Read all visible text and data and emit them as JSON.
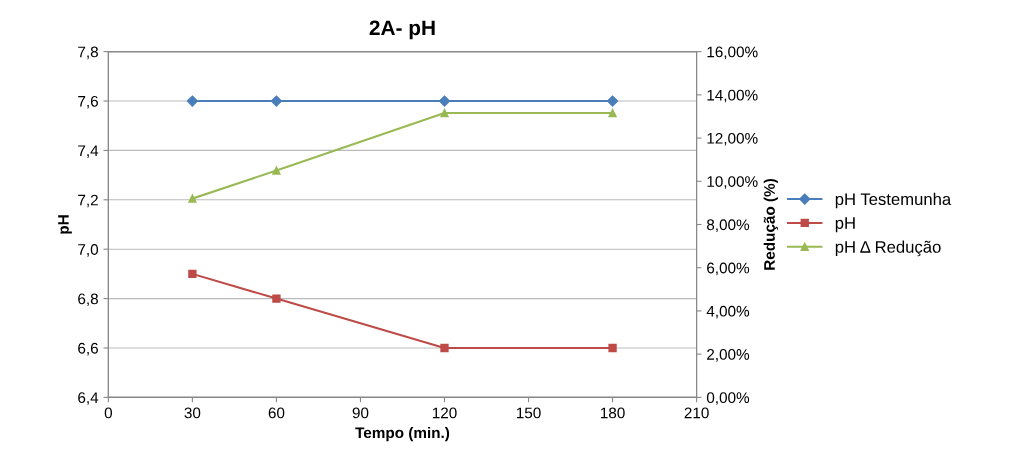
{
  "chart_data": {
    "type": "line",
    "title": "2A- pH",
    "xlabel": "Tempo (min.)",
    "ylabel": "pH",
    "y2label": "Redução (%)",
    "x": [
      30,
      60,
      120,
      180
    ],
    "series": [
      {
        "name": "pH Testemunha",
        "color": "#4a7ebb",
        "values": [
          7.6,
          7.6,
          7.6,
          7.6
        ],
        "marker": "diamond"
      },
      {
        "name": "pH",
        "color": "#be4b48",
        "values": [
          6.9,
          6.8,
          6.6,
          6.6
        ],
        "marker": "square"
      },
      {
        "name": "pH Δ Redução",
        "color": "#98b954",
        "values": [
          9.2,
          10.5,
          13.16,
          13.16
        ],
        "marker": "triangle",
        "axis": "y2"
      }
    ],
    "xlim": [
      0,
      210
    ],
    "xticks": [
      0,
      30,
      60,
      90,
      120,
      150,
      180,
      210
    ],
    "ylim": [
      6.4,
      7.8
    ],
    "yticks": [
      {
        "value": 6.4,
        "label": "6,4"
      },
      {
        "value": 6.6,
        "label": "6,6"
      },
      {
        "value": 6.8,
        "label": "6,8"
      },
      {
        "value": 7.0,
        "label": "7,0"
      },
      {
        "value": 7.2,
        "label": "7,2"
      },
      {
        "value": 7.4,
        "label": "7,4"
      },
      {
        "value": 7.6,
        "label": "7,6"
      },
      {
        "value": 7.8,
        "label": "7,8"
      }
    ],
    "y2lim": [
      0,
      16
    ],
    "y2ticks": [
      {
        "value": 0,
        "label": "0,00%"
      },
      {
        "value": 2,
        "label": "2,00%"
      },
      {
        "value": 4,
        "label": "4,00%"
      },
      {
        "value": 6,
        "label": "6,00%"
      },
      {
        "value": 8,
        "label": "8,00%"
      },
      {
        "value": 10,
        "label": "10,00%"
      },
      {
        "value": 12,
        "label": "12,00%"
      },
      {
        "value": 14,
        "label": "14,00%"
      },
      {
        "value": 16,
        "label": "16,00%"
      }
    ],
    "grid": "y",
    "legend": "right",
    "line_style": "solid"
  }
}
